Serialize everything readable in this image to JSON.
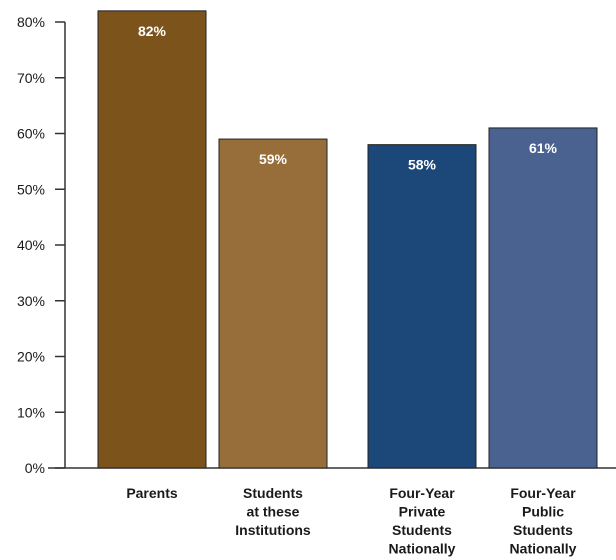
{
  "chart_data": {
    "type": "bar",
    "categories": [
      [
        "Parents"
      ],
      [
        "Students",
        "at these",
        "Institutions"
      ],
      [
        "Four-Year",
        "Private",
        "Students",
        "Nationally"
      ],
      [
        "Four-Year",
        "Public",
        "Students",
        "Nationally"
      ]
    ],
    "values": [
      82,
      59,
      58,
      61
    ],
    "data_labels": [
      "82%",
      "59%",
      "58%",
      "61%"
    ],
    "bar_colors": [
      "#7d531c",
      "#976e3a",
      "#1b4878",
      "#4a6290"
    ],
    "ylim": [
      0,
      80
    ],
    "y_ticks": [
      0,
      10,
      20,
      30,
      40,
      50,
      60,
      70,
      80
    ],
    "y_tick_labels": [
      "0%",
      "10%",
      "20%",
      "30%",
      "40%",
      "50%",
      "60%",
      "70%",
      "80%"
    ],
    "title": "",
    "xlabel": "",
    "ylabel": "",
    "grid": false,
    "legend": false
  }
}
